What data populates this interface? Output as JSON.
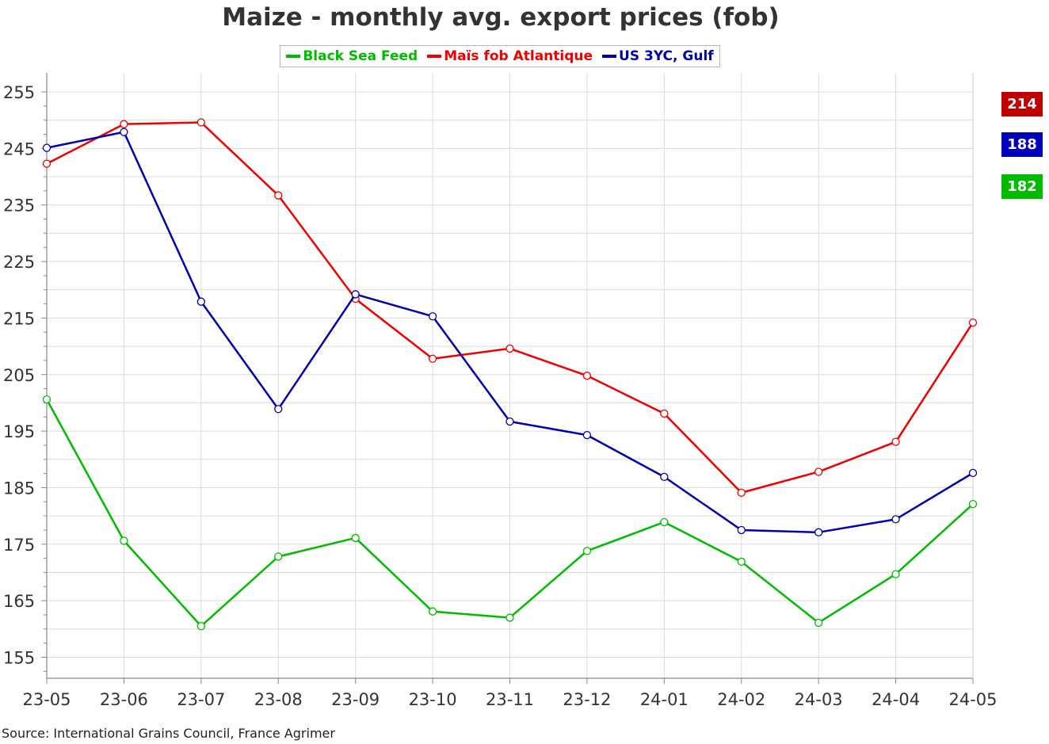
{
  "chart_data": {
    "type": "line",
    "title": "Maize - monthly avg. export prices (fob)",
    "xlabel": "",
    "ylabel": "",
    "categories": [
      "23-05",
      "23-06",
      "23-07",
      "23-08",
      "23-09",
      "23-10",
      "23-11",
      "23-12",
      "24-01",
      "24-02",
      "24-03",
      "24-04",
      "24-05"
    ],
    "yticks": [
      155,
      165,
      175,
      185,
      195,
      205,
      215,
      225,
      235,
      245,
      255
    ],
    "ylim": [
      151.5,
      255
    ],
    "grid": true,
    "legend_position": "top-center",
    "series": [
      {
        "name": "Black Sea Feed",
        "color": "#00bb00",
        "values": [
          200.6,
          175.6,
          160.5,
          172.8,
          176.1,
          163.1,
          162.0,
          173.8,
          178.9,
          171.9,
          161.1,
          169.7,
          182.1
        ]
      },
      {
        "name": "Maïs fob Atlantique",
        "color": "#ee0000",
        "values": [
          242.3,
          249.3,
          249.6,
          236.7,
          218.4,
          207.8,
          209.6,
          204.8,
          198.1,
          184.1,
          187.8,
          193.1,
          214.2
        ]
      },
      {
        "name": "US 3YC, Gulf",
        "color": "#0000aa",
        "values": [
          245.1,
          247.9,
          217.9,
          198.9,
          219.2,
          215.3,
          196.7,
          194.3,
          186.9,
          177.5,
          177.1,
          179.4,
          187.6
        ]
      }
    ],
    "end_labels": [
      {
        "text": "214",
        "color": "#c00000"
      },
      {
        "text": "188",
        "color": "#0000bb"
      },
      {
        "text": "182",
        "color": "#00bb00"
      }
    ]
  },
  "source": "Source: International Grains Council, France Agrimer"
}
